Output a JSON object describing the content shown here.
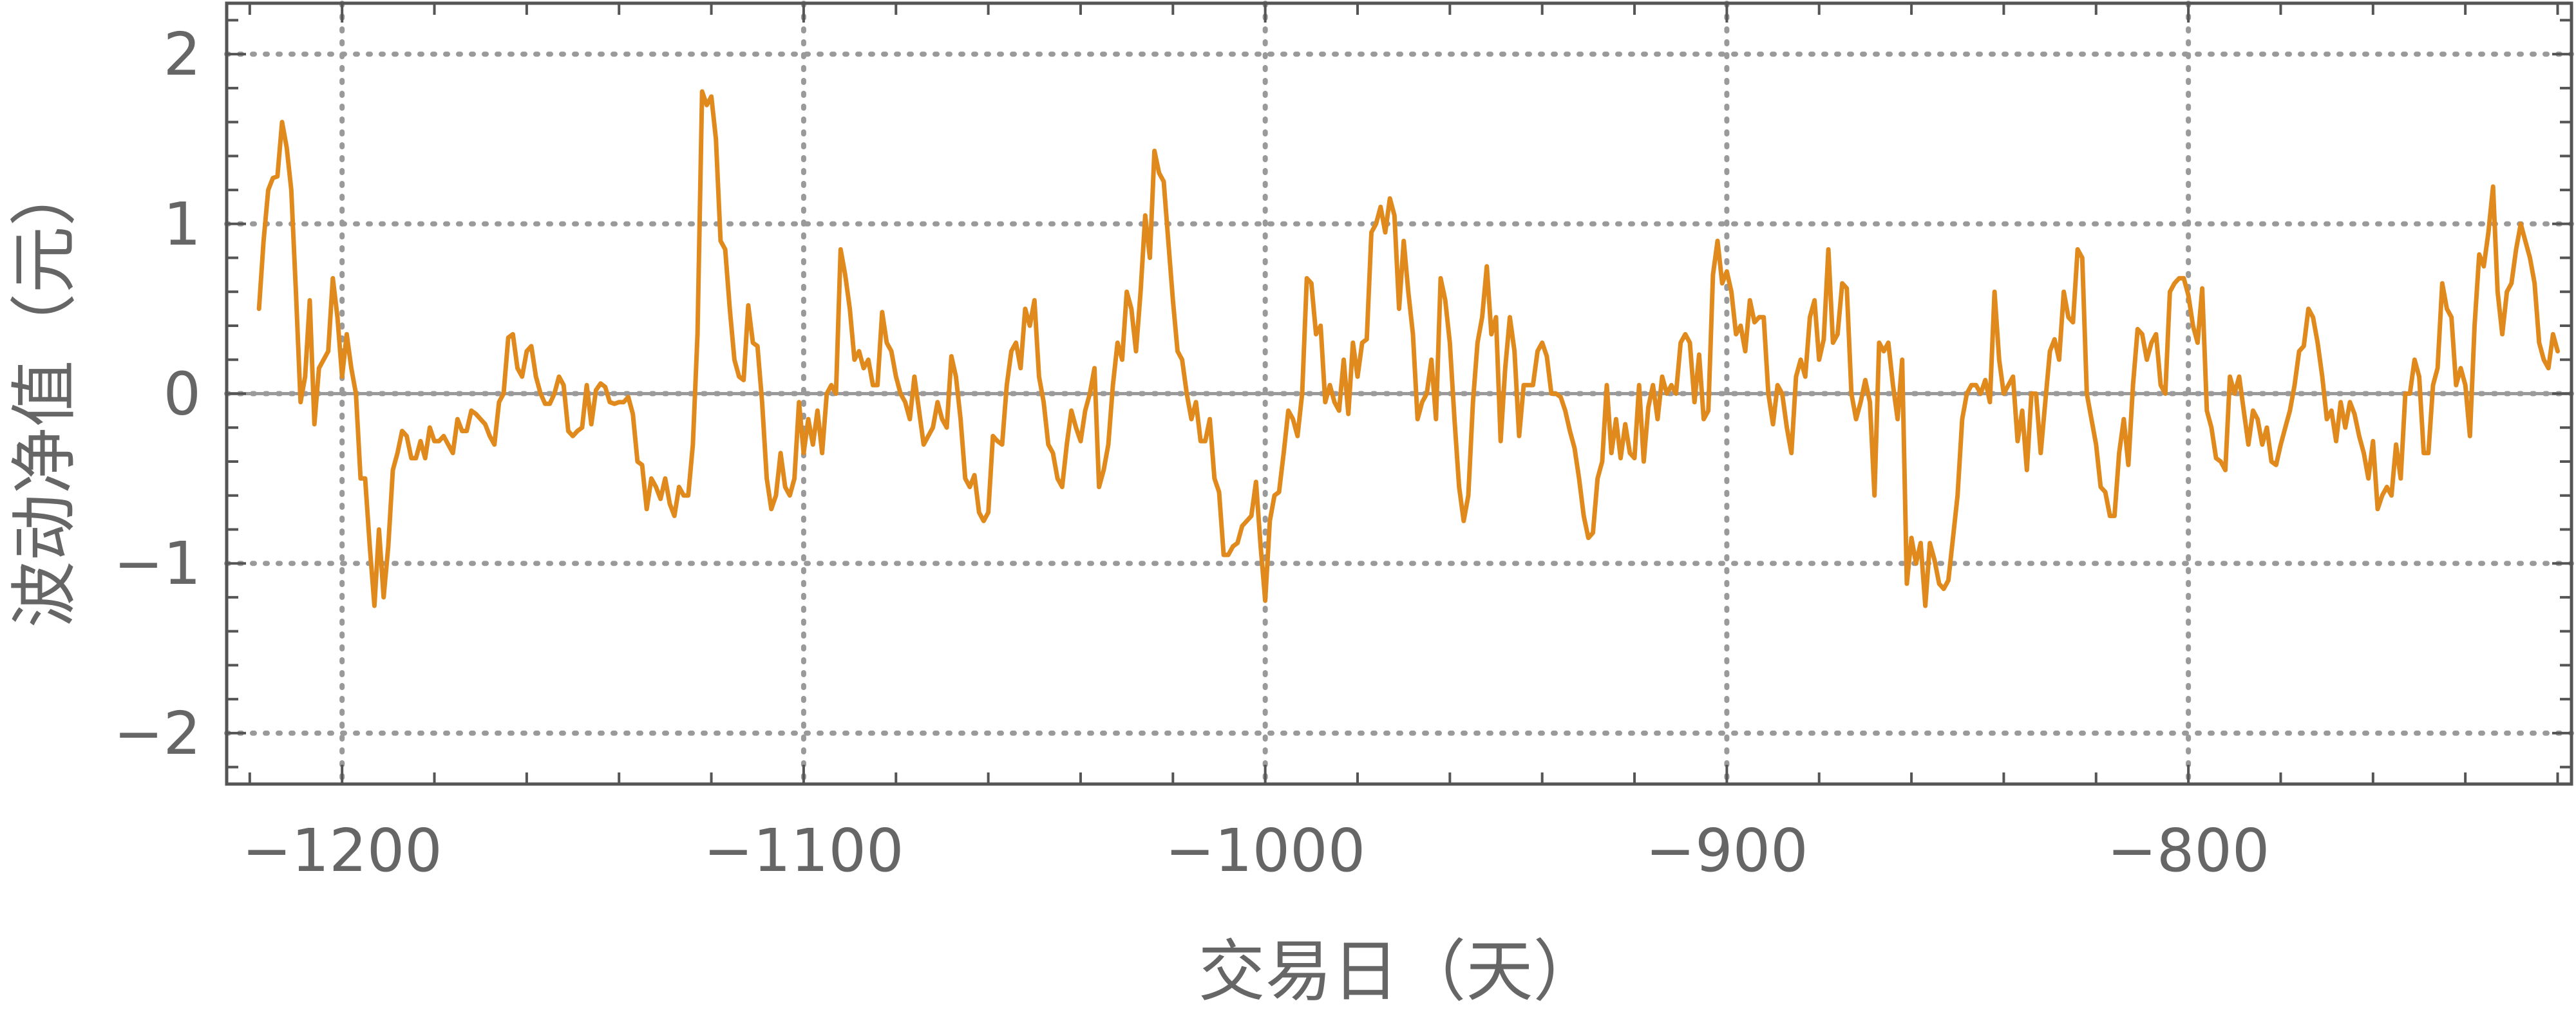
{
  "chart_data": {
    "type": "line",
    "title": "",
    "xlabel": "交易日（天）",
    "ylabel": "波动净值（元）",
    "xlim": [
      -1225,
      -717
    ],
    "ylim": [
      -2.3,
      2.3
    ],
    "x_ticks": [
      -1200,
      -1100,
      -1000,
      -900,
      -800
    ],
    "x_tick_labels": [
      "−1200",
      "−1100",
      "−1000",
      "−900",
      "−800"
    ],
    "y_ticks": [
      -2,
      -1,
      0,
      1,
      2
    ],
    "y_tick_labels": [
      "−2",
      "−1",
      "0",
      "1",
      "2"
    ],
    "grid": true,
    "grid_style": "dotted",
    "legend": "none",
    "colors": {
      "series": "#E08A1E",
      "grid": "#9a9a9a",
      "frame": "#555555",
      "text": "#666666"
    },
    "series": [
      {
        "x_start": -1218,
        "x_step": 1,
        "values": [
          0.5,
          0.9,
          1.2,
          1.27,
          1.28,
          1.6,
          1.45,
          1.2,
          0.6,
          -0.05,
          0.1,
          0.55,
          -0.18,
          0.15,
          0.2,
          0.25,
          0.68,
          0.45,
          0.1,
          0.35,
          0.15,
          0.0,
          -0.5,
          -0.5,
          -0.9,
          -1.25,
          -0.8,
          -1.2,
          -0.9,
          -0.45,
          -0.35,
          -0.22,
          -0.25,
          -0.38,
          -0.38,
          -0.28,
          -0.38,
          -0.2,
          -0.28,
          -0.28,
          -0.25,
          -0.3,
          -0.35,
          -0.15,
          -0.22,
          -0.22,
          -0.1,
          -0.12,
          -0.15,
          -0.18,
          -0.25,
          -0.3,
          -0.05,
          0.0,
          0.33,
          0.35,
          0.15,
          0.1,
          0.25,
          0.28,
          0.1,
          0.0,
          -0.06,
          -0.06,
          0.0,
          0.1,
          0.05,
          -0.22,
          -0.25,
          -0.22,
          -0.2,
          0.05,
          -0.18,
          0.02,
          0.06,
          0.04,
          -0.05,
          -0.06,
          -0.05,
          -0.05,
          -0.02,
          -0.12,
          -0.4,
          -0.42,
          -0.68,
          -0.5,
          -0.55,
          -0.62,
          -0.5,
          -0.65,
          -0.72,
          -0.55,
          -0.6,
          -0.6,
          -0.3,
          0.35,
          1.78,
          1.7,
          1.75,
          1.5,
          0.9,
          0.85,
          0.5,
          0.2,
          0.1,
          0.08,
          0.52,
          0.3,
          0.28,
          -0.05,
          -0.5,
          -0.68,
          -0.6,
          -0.35,
          -0.55,
          -0.6,
          -0.5,
          -0.05,
          -0.35,
          -0.15,
          -0.3,
          -0.1,
          -0.35,
          0.0,
          0.05,
          0.0,
          0.85,
          0.7,
          0.5,
          0.2,
          0.25,
          0.15,
          0.2,
          0.05,
          0.05,
          0.48,
          0.3,
          0.25,
          0.1,
          0.0,
          -0.05,
          -0.15,
          0.1,
          -0.1,
          -0.3,
          -0.25,
          -0.2,
          -0.05,
          -0.15,
          -0.2,
          0.22,
          0.1,
          -0.15,
          -0.5,
          -0.55,
          -0.48,
          -0.7,
          -0.75,
          -0.7,
          -0.25,
          -0.28,
          -0.3,
          0.05,
          0.25,
          0.3,
          0.15,
          0.5,
          0.4,
          0.55,
          0.1,
          -0.05,
          -0.3,
          -0.35,
          -0.5,
          -0.55,
          -0.3,
          -0.1,
          -0.2,
          -0.28,
          -0.1,
          0.0,
          0.15,
          -0.55,
          -0.45,
          -0.3,
          0.05,
          0.3,
          0.2,
          0.6,
          0.5,
          0.25,
          0.6,
          1.05,
          0.8,
          1.43,
          1.3,
          1.25,
          0.9,
          0.55,
          0.25,
          0.2,
          0.0,
          -0.15,
          -0.05,
          -0.28,
          -0.28,
          -0.15,
          -0.5,
          -0.58,
          -0.95,
          -0.95,
          -0.9,
          -0.88,
          -0.78,
          -0.75,
          -0.72,
          -0.52,
          -0.9,
          -1.22,
          -0.75,
          -0.6,
          -0.58,
          -0.35,
          -0.1,
          -0.15,
          -0.25,
          0.0,
          0.68,
          0.65,
          0.35,
          0.4,
          -0.05,
          0.05,
          -0.05,
          -0.1,
          0.2,
          -0.12,
          0.3,
          0.1,
          0.3,
          0.32,
          0.95,
          1.0,
          1.1,
          0.95,
          1.15,
          1.05,
          0.5,
          0.9,
          0.6,
          0.35,
          -0.15,
          -0.05,
          0.0,
          0.2,
          -0.15,
          0.68,
          0.55,
          0.3,
          -0.15,
          -0.55,
          -0.75,
          -0.6,
          -0.05,
          0.3,
          0.45,
          0.75,
          0.35,
          0.45,
          -0.28,
          0.15,
          0.45,
          0.25,
          -0.25,
          0.05,
          0.05,
          0.05,
          0.25,
          0.3,
          0.22,
          0.0,
          0.0,
          -0.02,
          -0.1,
          -0.22,
          -0.32,
          -0.5,
          -0.72,
          -0.85,
          -0.82,
          -0.5,
          -0.4,
          0.05,
          -0.35,
          -0.15,
          -0.38,
          -0.18,
          -0.35,
          -0.38,
          0.05,
          -0.4,
          -0.08,
          0.05,
          -0.15,
          0.1,
          0.0,
          0.05,
          0.0,
          0.3,
          0.35,
          0.3,
          -0.05,
          0.23,
          -0.15,
          -0.1,
          0.7,
          0.9,
          0.65,
          0.72,
          0.6,
          0.35,
          0.4,
          0.25,
          0.55,
          0.42,
          0.45,
          0.45,
          0.0,
          -0.18,
          0.05,
          0.0,
          -0.2,
          -0.35,
          0.1,
          0.2,
          0.1,
          0.45,
          0.55,
          0.2,
          0.32,
          0.85,
          0.3,
          0.35,
          0.65,
          0.62,
          0.0,
          -0.15,
          -0.05,
          0.08,
          -0.05,
          -0.6,
          0.3,
          0.25,
          0.3,
          0.05,
          -0.15,
          0.2,
          -1.12,
          -0.85,
          -1.0,
          -0.88,
          -1.25,
          -0.88,
          -0.98,
          -1.12,
          -1.15,
          -1.1,
          -0.85,
          -0.6,
          -0.15,
          0.0,
          0.05,
          0.05,
          0.0,
          0.08,
          -0.05,
          0.6,
          0.2,
          0.0,
          0.05,
          0.1,
          -0.28,
          -0.1,
          -0.45,
          0.0,
          0.0,
          -0.35,
          -0.05,
          0.25,
          0.32,
          0.2,
          0.6,
          0.45,
          0.42,
          0.85,
          0.8,
          0.0,
          -0.15,
          -0.3,
          -0.55,
          -0.58,
          -0.72,
          -0.72,
          -0.35,
          -0.15,
          -0.42,
          0.05,
          0.38,
          0.35,
          0.2,
          0.3,
          0.35,
          0.05,
          0.0,
          0.6,
          0.65,
          0.68,
          0.68,
          0.58,
          0.4,
          0.3,
          0.62,
          -0.1,
          -0.2,
          -0.38,
          -0.4,
          -0.45,
          0.1,
          0.0,
          0.1,
          -0.1,
          -0.3,
          -0.1,
          -0.15,
          -0.3,
          -0.2,
          -0.4,
          -0.42,
          -0.3,
          -0.2,
          -0.1,
          0.05,
          0.25,
          0.28,
          0.5,
          0.45,
          0.3,
          0.1,
          -0.15,
          -0.1,
          -0.28,
          -0.05,
          -0.2,
          -0.05,
          -0.12,
          -0.25,
          -0.35,
          -0.5,
          -0.28,
          -0.68,
          -0.6,
          -0.55,
          -0.6,
          -0.3,
          -0.5,
          0.0,
          0.0,
          0.2,
          0.1,
          -0.35,
          -0.35,
          0.05,
          0.15,
          0.65,
          0.5,
          0.45,
          0.05,
          0.15,
          0.05,
          -0.25,
          0.4,
          0.82,
          0.75,
          0.95,
          1.22,
          0.6,
          0.35,
          0.6,
          0.65,
          0.85,
          1.0,
          0.9,
          0.8,
          0.65,
          0.3,
          0.2,
          0.15,
          0.35,
          0.25
        ]
      }
    ]
  }
}
